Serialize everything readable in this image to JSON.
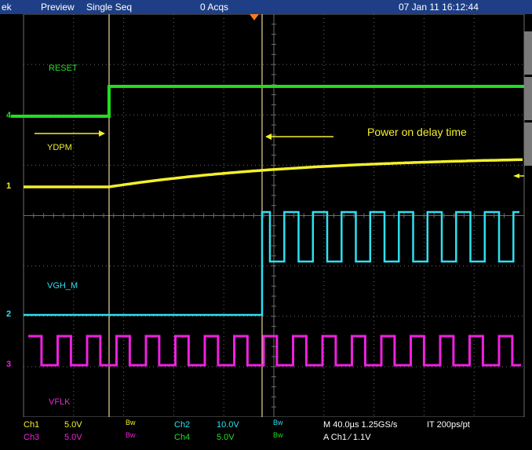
{
  "header": {
    "brand": "ek",
    "mode": "Preview",
    "trigger_mode": "Single Seq",
    "acqs": "0 Acqs",
    "datetime": "07 Jan 11 16:12:44"
  },
  "colors": {
    "ch1": "#f4f02a",
    "ch2": "#2ee0f0",
    "ch3": "#f020e0",
    "ch4": "#22dd22",
    "grid": "#6c6c6c",
    "cursor": "#e8d79a",
    "topbar": "#1e3f86",
    "trigger": "#ff7a1a"
  },
  "traces": {
    "reset": {
      "label": "RESET",
      "marker": "4"
    },
    "ydpm": {
      "label": "YDPM",
      "marker": "1"
    },
    "vgh_m": {
      "label": "VGH_M",
      "marker": "2"
    },
    "vflk": {
      "label": "VFLK",
      "marker": "3"
    }
  },
  "annotation": {
    "text": "Power on delay time"
  },
  "status": {
    "ch1_name": "Ch1",
    "ch1_scale": "5.0V",
    "ch1_bw": "Bw",
    "ch2_name": "Ch2",
    "ch2_scale": "10.0V",
    "ch2_bw": "Bw",
    "ch3_name": "Ch3",
    "ch3_scale": "5.0V",
    "ch3_bw": "Bw",
    "ch4_name": "Ch4",
    "ch4_scale": "5.0V",
    "ch4_bw": "Bw",
    "timebase": "M 40.0µs 1.25GS/s",
    "record": "IT 200ps/pt",
    "trigger_info": "A  Ch1  ∕  1.1V"
  }
}
